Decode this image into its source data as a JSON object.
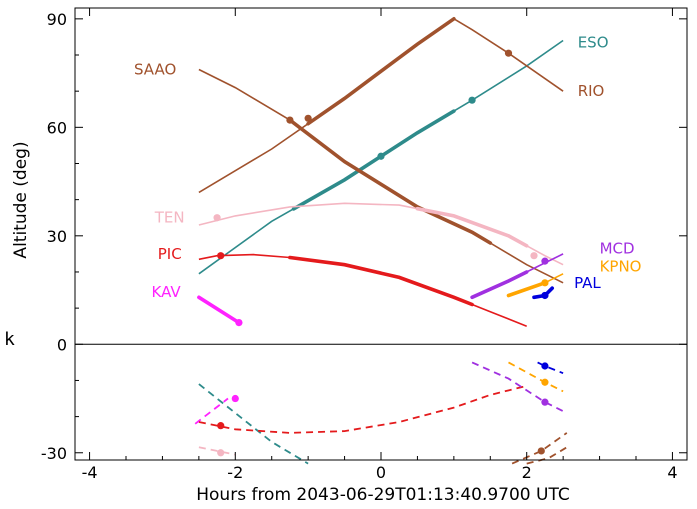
{
  "chart_data": {
    "type": "line",
    "xlabel": "Hours from 2043-06-29T01:13:40.9700 UTC",
    "ylabel": "Altitude (deg)",
    "xlim": [
      -4.2,
      4.2
    ],
    "ylim": [
      -32,
      93
    ],
    "x_ticks": [
      -4,
      -2,
      0,
      2,
      4
    ],
    "x_tick_labels": [
      "-4",
      "-2",
      "0",
      "2",
      "4"
    ],
    "y_ticks": [
      -30,
      0,
      30,
      60,
      90
    ],
    "y_tick_labels": [
      "-30",
      "0",
      "30",
      "60",
      "90"
    ],
    "grid": false,
    "side_char": "k",
    "colors": {
      "ESO": "#2e8b8b",
      "RIO": "#a0522d",
      "SAAO": "#a0522d",
      "TEN": "#f4b6c2",
      "PIC": "#e41a1c",
      "KAV": "#ff22ff",
      "MCD": "#a030e0",
      "KPNO": "#ffa500",
      "PAL": "#0000dd"
    },
    "series": [
      {
        "name": "ESO",
        "label_at": [
          2.7,
          83.5
        ],
        "x": [
          -2.5,
          -1.5,
          -0.5,
          0,
          0.5,
          1.25,
          2.0,
          2.5
        ],
        "y": [
          19.5,
          34,
          45.5,
          52,
          58.5,
          67.5,
          77,
          84
        ],
        "dot": [
          1.25,
          67.5
        ],
        "dot2": [
          0,
          52
        ],
        "bold": [
          -1.2,
          1.0
        ]
      },
      {
        "name": "RIO",
        "label_at": [
          2.7,
          70
        ],
        "x": [
          -2.5,
          -1.5,
          -0.5,
          0.5,
          1.0,
          1.25,
          1.75,
          2.5
        ],
        "y": [
          42,
          54,
          68,
          83,
          90,
          87,
          80.5,
          70
        ],
        "dot": [
          1.75,
          80.5
        ],
        "dot2": [
          -1.0,
          62.5
        ],
        "bold": [
          -1.0,
          1.0
        ]
      },
      {
        "name": "SAAO",
        "label_at": [
          -3.1,
          76
        ],
        "x": [
          -2.5,
          -2.0,
          -1.25,
          -0.5,
          0.5,
          1.25,
          2.0,
          2.5
        ],
        "y": [
          76,
          71,
          62,
          50.5,
          38,
          31,
          22,
          17
        ],
        "dot": [
          -1.25,
          62
        ],
        "bold": [
          -1.25,
          1.5
        ]
      },
      {
        "name": "TEN",
        "label_at": [
          -2.9,
          35
        ],
        "x": [
          -2.5,
          -2.0,
          -1.25,
          -0.5,
          0.25,
          1.0,
          1.75,
          2.25,
          2.5
        ],
        "y": [
          33,
          35.5,
          38,
          39,
          38.5,
          35.5,
          30,
          24.5,
          22
        ],
        "dot": [
          -2.25,
          35
        ],
        "dot2": [
          2.1,
          24.5
        ],
        "bold": [
          0.5,
          2.0
        ]
      },
      {
        "name": "PIC",
        "label_at": [
          -2.9,
          25
        ],
        "x": [
          -2.5,
          -2.25,
          -1.75,
          -1.25,
          -0.5,
          0.25,
          1.0,
          1.5,
          2.0
        ],
        "y": [
          23.5,
          24.5,
          24.8,
          24,
          22,
          18.5,
          13,
          9,
          5
        ],
        "dot": [
          -2.2,
          24.5
        ],
        "bold": [
          -1.25,
          1.25
        ]
      },
      {
        "name": "KAV",
        "label_at": [
          -2.95,
          14.5
        ],
        "x": [
          -2.5,
          -1.95
        ],
        "y": [
          13,
          6
        ],
        "dot": [
          -1.95,
          6
        ],
        "bold": [
          -2.5,
          -1.95
        ]
      },
      {
        "name": "MCD",
        "label_at": [
          3.0,
          26.5
        ],
        "x": [
          1.25,
          1.75,
          2.25,
          2.5
        ],
        "y": [
          13,
          17.5,
          22.5,
          25
        ],
        "dot": [
          2.25,
          23
        ],
        "bold": [
          1.25,
          2.0
        ]
      },
      {
        "name": "KPNO",
        "label_at": [
          3.0,
          21.5
        ],
        "x": [
          1.75,
          2.25,
          2.5
        ],
        "y": [
          13.5,
          17,
          19.5
        ],
        "dot": [
          2.25,
          17
        ],
        "bold": [
          1.75,
          2.25
        ]
      },
      {
        "name": "PAL",
        "label_at": [
          2.65,
          17
        ],
        "x": [
          2.1,
          2.25,
          2.35
        ],
        "y": [
          13,
          13.5,
          15.5
        ],
        "dot": [
          2.25,
          13.5
        ],
        "bold": [
          2.1,
          2.35
        ]
      }
    ],
    "below_horizon": [
      {
        "name": "ESO",
        "x": [
          -2.5,
          -2.0,
          -1.5,
          -1.0
        ],
        "y": [
          -11,
          -19,
          -27,
          -33
        ]
      },
      {
        "name": "KAV",
        "x": [
          -2.55,
          -2.1
        ],
        "y": [
          -22,
          -15
        ],
        "dot": [
          -2.0,
          -15
        ]
      },
      {
        "name": "TEN",
        "x": [
          -2.5,
          -2.0
        ],
        "y": [
          -28.5,
          -30.5
        ],
        "dot": [
          -2.2,
          -30
        ]
      },
      {
        "name": "PIC",
        "x": [
          -2.5,
          -2.0,
          -1.25,
          -0.5,
          0.25,
          1.0,
          1.5,
          2.0
        ],
        "y": [
          -21.5,
          -23.5,
          -24.5,
          -24,
          -21.5,
          -17.5,
          -14,
          -11.5
        ],
        "dot": [
          -2.2,
          -22.5
        ]
      },
      {
        "name": "MCD",
        "x": [
          1.25,
          1.75,
          2.25,
          2.55
        ],
        "y": [
          -5,
          -9.5,
          -16,
          -19
        ],
        "dot": [
          2.25,
          -16
        ]
      },
      {
        "name": "KPNO",
        "x": [
          1.75,
          2.25,
          2.5
        ],
        "y": [
          -5,
          -10.5,
          -13
        ],
        "dot": [
          2.25,
          -10.5
        ]
      },
      {
        "name": "PAL",
        "x": [
          2.15,
          2.25,
          2.5
        ],
        "y": [
          -5,
          -6,
          -8
        ],
        "dot": [
          2.25,
          -6
        ]
      },
      {
        "name": "RIO",
        "x": [
          1.8,
          2.2,
          2.55
        ],
        "y": [
          -33,
          -29.5,
          -24.5
        ]
      },
      {
        "name": "SAAO",
        "x": [
          2.0,
          2.3,
          2.55
        ],
        "y": [
          -33,
          -31.5,
          -28.5
        ],
        "dot": [
          2.2,
          -29.5
        ]
      }
    ]
  }
}
